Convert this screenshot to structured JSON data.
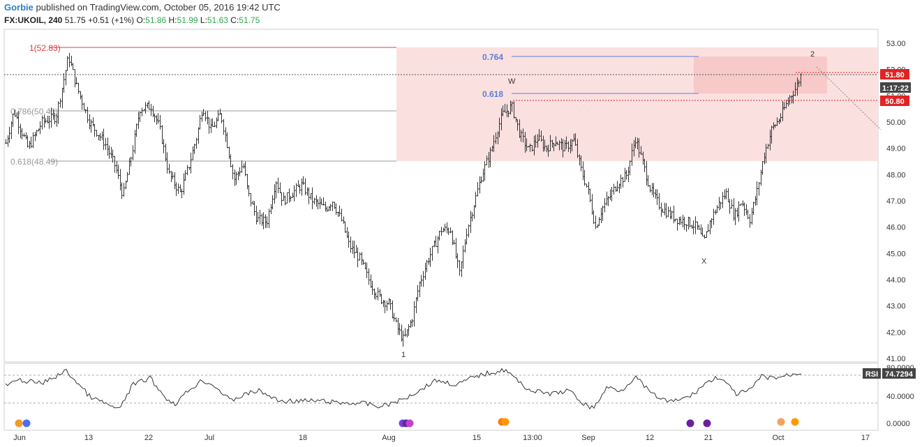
{
  "header": {
    "author": "Gorbie",
    "published_text": "published on TradingView.com, October 05, 2016 19:42 UTC",
    "symbol": "FX:UKOIL, 240",
    "last": "51.75",
    "change": "+0.51 (+1%)",
    "o_label": "O:",
    "o_val": "51.86",
    "h_label": "H:",
    "h_val": "51.99",
    "l_label": "L:",
    "l_val": "51.63",
    "c_label": "C:",
    "c_val": "51.75"
  },
  "colors": {
    "fib_red": "#e03c3c",
    "fib_blue": "#5b7fd6",
    "fib_gray": "#999999",
    "zone_fill": "#fbe0e0",
    "zone_dark": "#f7c9c9",
    "price_tag": "#e02424",
    "time_tag": "#444444",
    "candle": "#333333",
    "rsi_line": "#333333"
  },
  "fib_labels": {
    "level_1": "1(52.83)",
    "level_786": "0.786(50.40)",
    "level_618_gray": "0.618(48.49)",
    "level_764": "0.764",
    "level_618_blue": "0.618"
  },
  "wave_labels": {
    "w": "W",
    "x": "X",
    "one": "1",
    "two": "2"
  },
  "price_tags": {
    "upper": "51.80",
    "lower": "50.80",
    "countdown": "1:17:22"
  },
  "rsi": {
    "label": "RSI",
    "value": "74.7294",
    "ticks": [
      "40.0000",
      "0.0000"
    ],
    "top_tick": "80.0000"
  },
  "chart_data": {
    "type": "candlestick",
    "title": "",
    "y_axis_ticks": [
      "53.00",
      "52.00",
      "51.00",
      "50.00",
      "49.00",
      "48.00",
      "47.00",
      "46.00",
      "45.00",
      "44.00",
      "43.00",
      "42.00",
      "41.00"
    ],
    "ylim": [
      41.0,
      53.0
    ],
    "x_axis_ticks": [
      "Jun",
      "13",
      "22",
      "Jul",
      "18",
      "Aug",
      "15",
      "13:00",
      "Sep",
      "12",
      "21",
      "Oct",
      "17"
    ],
    "key_points": [
      {
        "label": "1(52.83)",
        "date": "Jun 8",
        "price": 52.83
      },
      {
        "label": "1",
        "date": "Aug 2",
        "price": 41.5
      },
      {
        "label": "W",
        "date": "Aug 18",
        "price": 50.5
      },
      {
        "label": "X",
        "date": "Sep 20",
        "price": 45.1
      },
      {
        "label": "2",
        "date": "Oct 5",
        "price": 51.99
      }
    ],
    "fib_levels": [
      {
        "name": "1",
        "value": 52.83
      },
      {
        "name": "0.786",
        "value": 50.4
      },
      {
        "name": "0.618",
        "value": 48.49
      },
      {
        "name": "0.764",
        "value": null
      },
      {
        "name": "0.618",
        "value": null
      }
    ],
    "last_price": 51.75,
    "horizontal_lines": [
      51.8,
      50.8
    ]
  }
}
